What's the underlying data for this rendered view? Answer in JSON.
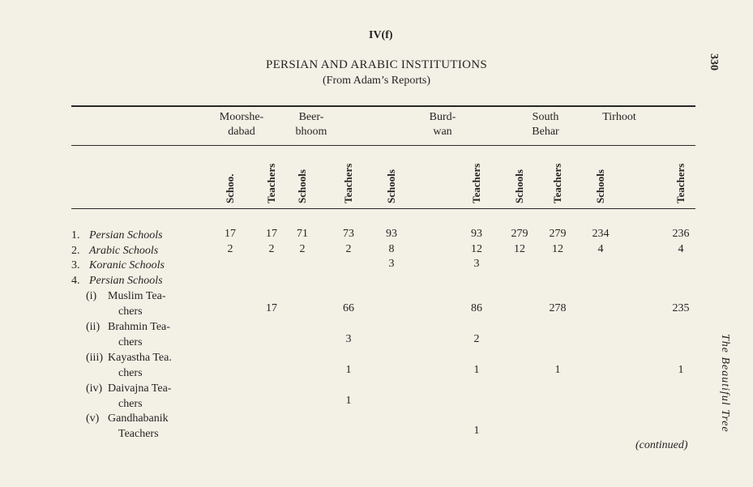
{
  "header": {
    "section": "IV(f)",
    "title": "PERSIAN AND ARABIC INSTITUTIONS",
    "subtitle": "(From Adam’s Reports)",
    "page_number": "330",
    "running_title": "The Beautiful Tree"
  },
  "table": {
    "groups": [
      [
        "Moorshe-",
        "dabad"
      ],
      [
        "Beer-",
        "bhoom"
      ],
      [
        "Burd-",
        "wan"
      ],
      [
        "South",
        "Behar"
      ],
      [
        "Tirhoot"
      ]
    ],
    "columns": [
      "Schoo.",
      "Teachers",
      "Schools",
      "Teachers",
      "Schools",
      "Teachers",
      "Schools",
      "Teachers",
      "Schools",
      "Teachers"
    ],
    "rows": [
      {
        "number": "1.",
        "label": [
          "Persian Schools"
        ],
        "values": [
          17,
          17,
          71,
          73,
          93,
          93,
          279,
          279,
          234,
          236
        ]
      },
      {
        "number": "2.",
        "label": [
          "Arabic Schools"
        ],
        "values": [
          2,
          2,
          2,
          2,
          8,
          12,
          12,
          12,
          4,
          4
        ]
      },
      {
        "number": "3.",
        "label": [
          "Koranic Schools"
        ],
        "values": [
          null,
          null,
          null,
          null,
          3,
          3,
          null,
          null,
          null,
          null
        ]
      },
      {
        "number": "4.",
        "label": [
          "Persian Schools"
        ],
        "values": [
          null,
          null,
          null,
          null,
          null,
          null,
          null,
          null,
          null,
          null
        ]
      },
      {
        "number": "(i)",
        "label": [
          "Muslim Tea-",
          "chers"
        ],
        "values": [
          null,
          17,
          null,
          66,
          null,
          86,
          null,
          278,
          null,
          235
        ]
      },
      {
        "number": "(ii)",
        "label": [
          "Brahmin Tea-",
          "chers"
        ],
        "values": [
          null,
          null,
          null,
          3,
          null,
          2,
          null,
          null,
          null,
          null
        ]
      },
      {
        "number": "(iii)",
        "label": [
          "Kayastha Tea.",
          "chers"
        ],
        "values": [
          null,
          null,
          null,
          1,
          null,
          1,
          null,
          1,
          null,
          1
        ]
      },
      {
        "number": "(iv)",
        "label": [
          "Daivajna Tea-",
          "chers"
        ],
        "values": [
          null,
          null,
          null,
          1,
          null,
          null,
          null,
          null,
          null,
          null
        ]
      },
      {
        "number": "(v)",
        "label": [
          "Gandhabanik",
          "Teachers"
        ],
        "values": [
          null,
          null,
          null,
          null,
          null,
          1,
          null,
          null,
          null,
          null
        ]
      }
    ]
  },
  "footer": {
    "note": "(continued)"
  }
}
